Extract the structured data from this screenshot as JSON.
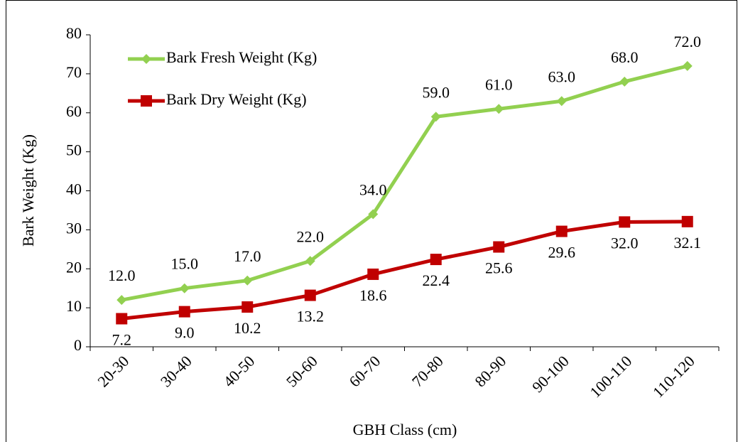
{
  "chart_data": {
    "type": "line",
    "categories": [
      "20-30",
      "30-40",
      "40-50",
      "50-60",
      "60-70",
      "70-80",
      "80-90",
      "90-100",
      "100-110",
      "110-120"
    ],
    "series": [
      {
        "name": "Bark Fresh Weight (Kg)",
        "color": "#92d050",
        "marker": "diamond",
        "values": [
          12,
          15,
          17,
          22,
          34,
          59,
          61,
          63,
          68,
          72
        ],
        "value_labels": [
          "12.0",
          "15.0",
          "17.0",
          "22.0",
          "34.0",
          "59.0",
          "61.0",
          "63.0",
          "68.0",
          "72.0"
        ]
      },
      {
        "name": "Bark Dry Weight (Kg)",
        "color": "#c00000",
        "marker": "square",
        "values": [
          7.2,
          9,
          10.2,
          13.2,
          18.6,
          22.4,
          25.6,
          29.6,
          32,
          32.1
        ],
        "value_labels": [
          "7.2",
          "9.0",
          "10.2",
          "13.2",
          "18.6",
          "22.4",
          "25.6",
          "29.6",
          "32.0",
          "32.1"
        ]
      }
    ],
    "ylabel": "Bark Weight (Kg)",
    "xlabel": "GBH Class (cm)",
    "ylim": [
      0,
      80
    ],
    "yticks": [
      0,
      10,
      20,
      30,
      40,
      50,
      60,
      70,
      80
    ],
    "grid": false,
    "legend": "upper left"
  }
}
